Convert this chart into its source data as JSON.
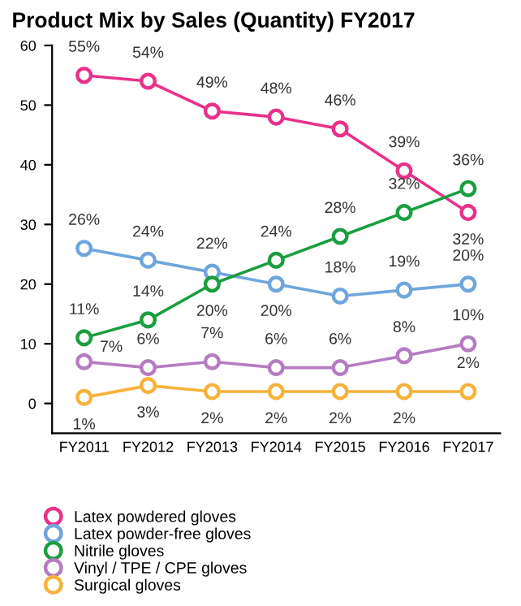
{
  "chart_data": {
    "type": "line",
    "title": "Product Mix by Sales (Quantity) FY2017",
    "categories": [
      "FY2011",
      "FY2012",
      "FY2013",
      "FY2014",
      "FY2015",
      "FY2016",
      "FY2017"
    ],
    "series": [
      {
        "name": "Latex powdered gloves",
        "color": "#e8318a",
        "values": [
          55,
          54,
          49,
          48,
          46,
          39,
          32
        ],
        "value_labels": [
          "55%",
          "54%",
          "49%",
          "48%",
          "46%",
          "39%",
          "32%"
        ]
      },
      {
        "name": "Latex powder-free gloves",
        "color": "#6ea6dc",
        "values": [
          26,
          24,
          22,
          20,
          18,
          19,
          20
        ],
        "value_labels": [
          "26%",
          "24%",
          "22%",
          "20%",
          "18%",
          "19%",
          "20%"
        ]
      },
      {
        "name": "Nitrile gloves",
        "color": "#1a9e3f",
        "values": [
          11,
          14,
          20,
          24,
          28,
          32,
          36
        ],
        "value_labels": [
          "11%",
          "14%",
          "20%",
          "24%",
          "28%",
          "32%",
          "36%"
        ]
      },
      {
        "name": "Vinyl / TPE / CPE gloves",
        "color": "#b57cc0",
        "values": [
          7,
          6,
          7,
          6,
          6,
          8,
          10
        ],
        "value_labels": [
          "7%",
          "6%",
          "7%",
          "6%",
          "6%",
          "8%",
          "10%"
        ]
      },
      {
        "name": "Surgical gloves",
        "color": "#f7b23b",
        "values": [
          1,
          3,
          2,
          2,
          2,
          2,
          2
        ],
        "value_labels": [
          "1%",
          "3%",
          "2%",
          "2%",
          "2%",
          "2%",
          "2%"
        ]
      }
    ],
    "ylim": [
      -5,
      60
    ],
    "yticks": [
      0,
      10,
      20,
      30,
      40,
      50,
      60
    ],
    "grid": false,
    "legend": "bottom",
    "marker": "circle",
    "line_style": "solid"
  }
}
